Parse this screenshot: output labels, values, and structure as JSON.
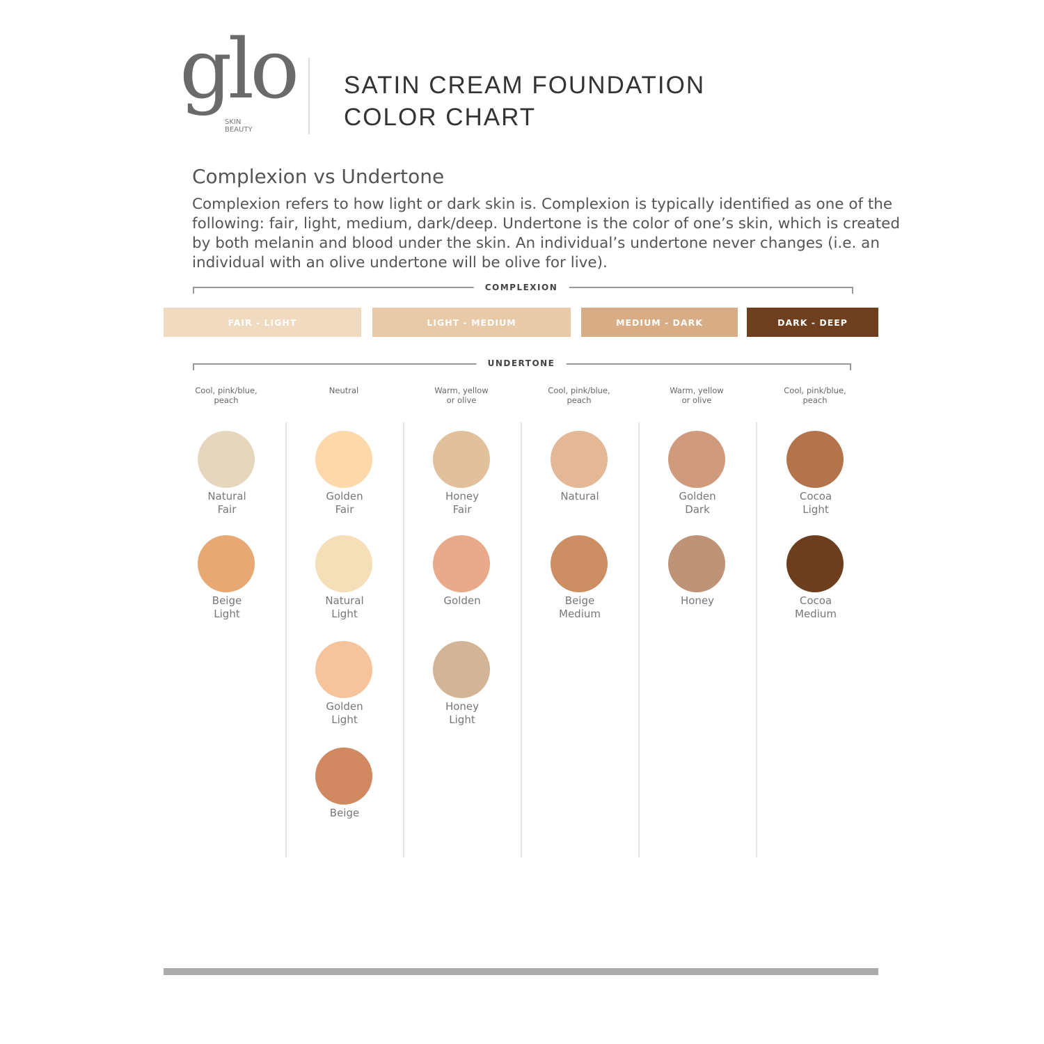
{
  "logo": {
    "wordmark": "glo",
    "sub_line1": "SKIN",
    "sub_line2": "BEAUTY"
  },
  "header": {
    "title_line1": "SATIN CREAM FOUNDATION",
    "title_line2": "COLOR CHART"
  },
  "section": {
    "title": "Complexion vs Undertone",
    "body": "Complexion refers to how light or dark skin is. Complexion is typically identified as one of the following: fair, light, medium, dark/deep. Undertone is the color of one’s skin, which is created by both melanin and blood under the skin. An individual’s undertone never changes (i.e. an individual with an olive undertone will be olive for live)."
  },
  "complexion": {
    "label": "COMPLEXION",
    "bars": [
      {
        "label": "FAIR - LIGHT",
        "color": "#f0dac0"
      },
      {
        "label": "LIGHT - MEDIUM",
        "color": "#e8c9a8"
      },
      {
        "label": "MEDIUM - DARK",
        "color": "#d8ad86"
      },
      {
        "label": "DARK - DEEP",
        "color": "#6e3f1e"
      }
    ]
  },
  "undertone": {
    "label": "UNDERTONE",
    "columns": [
      {
        "undertone": "Cool, pink/blue, peach",
        "shades": [
          {
            "name": "Natural Fair",
            "color": "#e6d6bd"
          },
          {
            "name": "Beige Light",
            "color": "#e7a873"
          }
        ]
      },
      {
        "undertone": "Neutral",
        "shades": [
          {
            "name": "Golden Fair",
            "color": "#fdd8ab"
          },
          {
            "name": "Natural Light",
            "color": "#f5dfb8"
          },
          {
            "name": "Golden Light",
            "color": "#f6c49c"
          },
          {
            "name": "Beige",
            "color": "#d08961"
          }
        ]
      },
      {
        "undertone": "Warm, yellow or olive",
        "shades": [
          {
            "name": "Honey Fair",
            "color": "#e1c19b"
          },
          {
            "name": "Golden",
            "color": "#e8aa8b"
          },
          {
            "name": "Honey Light",
            "color": "#d4b496"
          }
        ]
      },
      {
        "undertone": "Cool, pink/blue, peach",
        "shades": [
          {
            "name": "Natural",
            "color": "#e4b797"
          },
          {
            "name": "Beige Medium",
            "color": "#cd8e63"
          }
        ]
      },
      {
        "undertone": "Warm, yellow or olive",
        "shades": [
          {
            "name": "Golden Dark",
            "color": "#d09a7d"
          },
          {
            "name": "Honey",
            "color": "#be9377"
          }
        ]
      },
      {
        "undertone": "Cool, pink/blue, peach",
        "shades": [
          {
            "name": "Cocoa Light",
            "color": "#b3734b"
          },
          {
            "name": "Cocoa Medium",
            "color": "#6c3e1d"
          }
        ]
      }
    ]
  }
}
